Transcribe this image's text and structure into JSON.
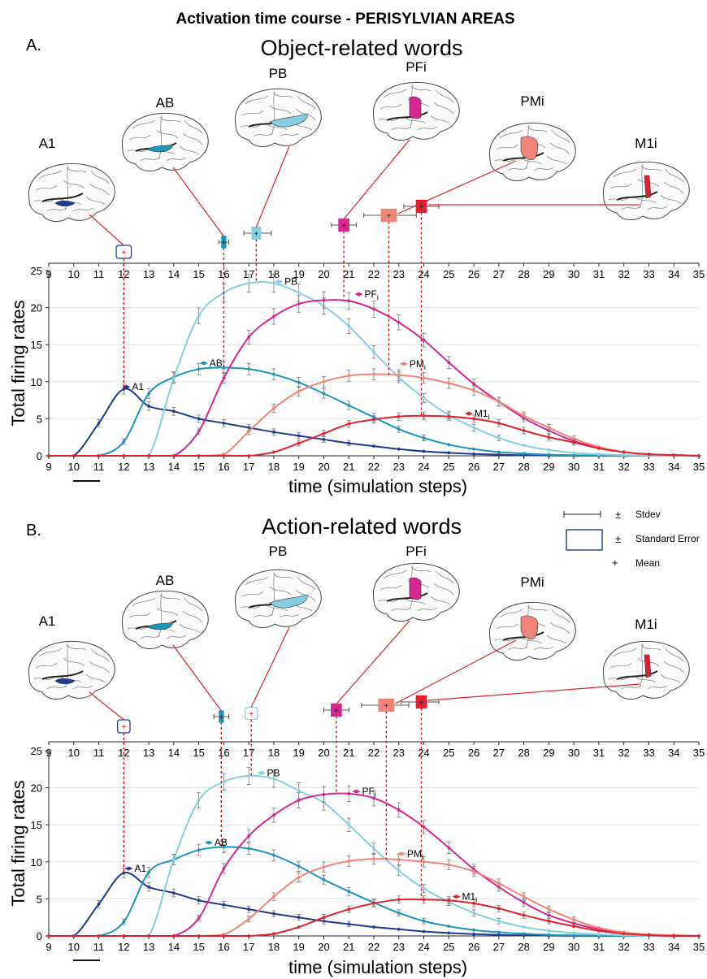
{
  "main_title": "Activation time course - PERISYLVIAN AREAS",
  "xlabel": "time (simulation steps)",
  "ylabel": "Total firing rates",
  "legend": {
    "stdev": "Stdev",
    "se": "Standard Error",
    "mean": "Mean",
    "pm": "±",
    "plus": "+"
  },
  "areas": [
    {
      "key": "A1",
      "label": "A1",
      "line_label": "A1",
      "line_sub": "",
      "color": "#1f3a93"
    },
    {
      "key": "AB",
      "label": "AB",
      "line_label": "AB",
      "line_sub": "",
      "color": "#1b96b8"
    },
    {
      "key": "PB",
      "label": "PB",
      "line_label": "PB",
      "line_sub": "",
      "color": "#86cfe0"
    },
    {
      "key": "PFi",
      "label": "PFi",
      "line_label": "PF",
      "line_sub": "i",
      "color": "#d6268f"
    },
    {
      "key": "PMi",
      "label": "PMi",
      "line_label": "PM",
      "line_sub": "i",
      "color": "#f08478"
    },
    {
      "key": "M1i",
      "label": "M1i",
      "line_label": "M1",
      "line_sub": "i",
      "color": "#e0202e"
    }
  ],
  "chart_data": [
    {
      "panel": "A.",
      "title": "Object-related words",
      "type": "line",
      "xlim": [
        9,
        35
      ],
      "ylim": [
        0,
        25
      ],
      "x_ticks": [
        9,
        10,
        11,
        12,
        13,
        14,
        15,
        16,
        17,
        18,
        19,
        20,
        21,
        22,
        23,
        24,
        25,
        26,
        27,
        28,
        29,
        30,
        31,
        32,
        33,
        34,
        35
      ],
      "y_ticks": [
        0,
        5,
        10,
        15,
        20,
        25
      ],
      "x": [
        9,
        10,
        11,
        12,
        13,
        14,
        15,
        16,
        17,
        18,
        19,
        20,
        21,
        22,
        23,
        24,
        25,
        26,
        27,
        28,
        29,
        30,
        31,
        32,
        33,
        34,
        35
      ],
      "series": [
        {
          "name": "A1",
          "values": [
            0,
            0,
            4.4,
            9.0,
            6.7,
            6.0,
            5.0,
            4.4,
            3.8,
            3.2,
            2.7,
            2.2,
            1.7,
            1.3,
            0.9,
            0.6,
            0.4,
            0.25,
            0.15,
            0.08,
            0.04,
            0.02,
            0,
            0,
            0,
            0,
            0
          ]
        },
        {
          "name": "AB",
          "values": [
            0,
            0,
            0,
            1.9,
            8.4,
            10.6,
            11.7,
            11.9,
            11.7,
            11.0,
            9.9,
            8.4,
            6.8,
            5.2,
            3.6,
            2.4,
            1.5,
            0.9,
            0.5,
            0.3,
            0.15,
            0.08,
            0.03,
            0,
            0,
            0,
            0
          ]
        },
        {
          "name": "PB",
          "values": [
            0,
            0,
            0,
            0,
            0,
            10.5,
            18.9,
            22.0,
            23.3,
            23.3,
            22.0,
            20.2,
            17.5,
            14.0,
            10.6,
            7.8,
            5.5,
            3.8,
            2.4,
            1.4,
            0.8,
            0.4,
            0.2,
            0.1,
            0,
            0,
            0
          ]
        },
        {
          "name": "PFi",
          "values": [
            0,
            0,
            0,
            0,
            0,
            0,
            3.3,
            10.5,
            16.0,
            18.8,
            20.5,
            21.0,
            20.9,
            19.8,
            18.0,
            15.6,
            12.6,
            9.7,
            7.3,
            5.1,
            3.4,
            2.0,
            1.1,
            0.5,
            0.2,
            0.1,
            0
          ]
        },
        {
          "name": "PMi",
          "values": [
            0,
            0,
            0,
            0,
            0,
            0,
            0,
            0.2,
            3.3,
            6.4,
            8.7,
            10.0,
            10.8,
            11.0,
            10.9,
            10.5,
            9.8,
            8.8,
            7.3,
            5.4,
            3.8,
            2.3,
            1.2,
            0.5,
            0.2,
            0.1,
            0
          ]
        },
        {
          "name": "M1i",
          "values": [
            0,
            0,
            0,
            0,
            0,
            0,
            0,
            0,
            0,
            0.5,
            1.7,
            3.0,
            4.3,
            4.9,
            5.3,
            5.4,
            5.3,
            5.0,
            4.4,
            3.4,
            2.5,
            1.8,
            1.0,
            0.5,
            0.2,
            0.1,
            0
          ]
        }
      ],
      "line_label_points": [
        {
          "area": "A1",
          "x": 12.1,
          "y": 9.3
        },
        {
          "area": "AB",
          "x": 15.2,
          "y": 12.5
        },
        {
          "area": "PB",
          "x": 18.2,
          "y": 23.5
        },
        {
          "area": "PFi",
          "x": 21.4,
          "y": 21.8
        },
        {
          "area": "PMi",
          "x": 23.2,
          "y": 12.4
        },
        {
          "area": "M1i",
          "x": 25.8,
          "y": 5.7
        }
      ],
      "peak_markers": [
        {
          "area": "A1",
          "mean": 12.0,
          "box": [
            11.7,
            12.3
          ],
          "whisker": [
            12.0,
            12.0
          ],
          "box_fill": false
        },
        {
          "area": "AB",
          "mean": 16.0,
          "box": [
            15.93,
            16.07
          ],
          "whisker": [
            15.8,
            16.2
          ],
          "box_fill": true
        },
        {
          "area": "PB",
          "mean": 17.3,
          "box": [
            17.13,
            17.47
          ],
          "whisker": [
            16.8,
            17.9
          ],
          "box_fill": true
        },
        {
          "area": "PFi",
          "mean": 20.8,
          "box": [
            20.6,
            21.0
          ],
          "whisker": [
            20.3,
            21.3
          ],
          "box_fill": true
        },
        {
          "area": "PMi",
          "mean": 22.6,
          "box": [
            22.3,
            22.9
          ],
          "whisker": [
            21.6,
            23.7
          ],
          "box_fill": true
        },
        {
          "area": "M1i",
          "mean": 23.9,
          "box": [
            23.7,
            24.1
          ],
          "whisker": [
            23.2,
            24.6
          ],
          "box_fill": true
        }
      ]
    },
    {
      "panel": "B.",
      "title": "Action-related words",
      "type": "line",
      "xlim": [
        9,
        35
      ],
      "ylim": [
        0,
        25
      ],
      "x_ticks": [
        9,
        10,
        11,
        12,
        13,
        14,
        15,
        16,
        17,
        18,
        19,
        20,
        21,
        22,
        23,
        24,
        25,
        26,
        27,
        28,
        29,
        30,
        31,
        32,
        33,
        34,
        35
      ],
      "y_ticks": [
        0,
        5,
        10,
        15,
        20,
        25
      ],
      "x": [
        9,
        10,
        11,
        12,
        13,
        14,
        15,
        16,
        17,
        18,
        19,
        20,
        21,
        22,
        23,
        24,
        25,
        26,
        27,
        28,
        29,
        30,
        31,
        32,
        33,
        34,
        35
      ],
      "series": [
        {
          "name": "A1",
          "values": [
            0,
            0,
            4.3,
            8.5,
            6.6,
            5.8,
            4.8,
            4.2,
            3.6,
            3.0,
            2.5,
            2.0,
            1.6,
            1.2,
            0.9,
            0.6,
            0.4,
            0.25,
            0.15,
            0.08,
            0.04,
            0.02,
            0,
            0,
            0,
            0,
            0
          ]
        },
        {
          "name": "AB",
          "values": [
            0,
            0,
            0,
            1.9,
            8.6,
            10.3,
            11.6,
            12.0,
            11.8,
            10.9,
            9.4,
            7.6,
            6.0,
            4.5,
            3.1,
            2.0,
            1.3,
            0.8,
            0.5,
            0.3,
            0.15,
            0.08,
            0.03,
            0,
            0,
            0,
            0
          ]
        },
        {
          "name": "PB",
          "values": [
            0,
            0,
            0,
            0,
            0,
            10.3,
            18.3,
            20.8,
            21.6,
            21.2,
            19.6,
            18.0,
            15.0,
            11.8,
            8.8,
            6.4,
            4.6,
            3.1,
            2.0,
            1.2,
            0.7,
            0.4,
            0.2,
            0.1,
            0,
            0,
            0
          ]
        },
        {
          "name": "PFi",
          "values": [
            0,
            0,
            0,
            0,
            0,
            0,
            2.4,
            9.1,
            13.5,
            16.3,
            18.3,
            19.1,
            19.2,
            18.6,
            17.0,
            14.7,
            11.9,
            9.0,
            6.6,
            4.5,
            2.8,
            1.7,
            0.9,
            0.4,
            0.2,
            0.1,
            0
          ]
        },
        {
          "name": "PMi",
          "values": [
            0,
            0,
            0,
            0,
            0,
            0,
            0,
            0.2,
            2.3,
            5.3,
            7.9,
            9.3,
            10.1,
            10.4,
            10.3,
            10.0,
            9.6,
            8.7,
            7.1,
            5.3,
            3.6,
            2.2,
            1.1,
            0.5,
            0.2,
            0.1,
            0
          ]
        },
        {
          "name": "M1i",
          "values": [
            0,
            0,
            0,
            0,
            0,
            0,
            0,
            0,
            0,
            0.3,
            1.2,
            2.5,
            3.6,
            4.4,
            4.9,
            4.9,
            4.8,
            4.4,
            3.7,
            2.8,
            2.0,
            1.3,
            0.7,
            0.3,
            0.1,
            0,
            0
          ]
        }
      ],
      "line_label_points": [
        {
          "area": "A1",
          "x": 12.2,
          "y": 9.1
        },
        {
          "area": "AB",
          "x": 15.4,
          "y": 12.6
        },
        {
          "area": "PB",
          "x": 17.5,
          "y": 22.0
        },
        {
          "area": "PFi",
          "x": 21.3,
          "y": 19.5
        },
        {
          "area": "PMi",
          "x": 23.1,
          "y": 11.1
        },
        {
          "area": "M1i",
          "x": 25.3,
          "y": 5.3
        }
      ],
      "peak_markers": [
        {
          "area": "A1",
          "mean": 12.0,
          "box": [
            11.75,
            12.25
          ],
          "whisker": [
            12.0,
            12.0
          ],
          "box_fill": false
        },
        {
          "area": "AB",
          "mean": 15.9,
          "box": [
            15.83,
            15.97
          ],
          "whisker": [
            15.6,
            16.2
          ],
          "box_fill": true
        },
        {
          "area": "PB",
          "mean": 17.1,
          "box": [
            16.85,
            17.35
          ],
          "whisker": [
            17.0,
            17.0
          ],
          "box_fill": false
        },
        {
          "area": "PFi",
          "mean": 20.5,
          "box": [
            20.3,
            20.7
          ],
          "whisker": [
            20.0,
            21.0
          ],
          "box_fill": true
        },
        {
          "area": "PMi",
          "mean": 22.5,
          "box": [
            22.2,
            22.8
          ],
          "whisker": [
            21.5,
            23.4
          ],
          "box_fill": true
        },
        {
          "area": "M1i",
          "mean": 23.9,
          "box": [
            23.7,
            24.1
          ],
          "whisker": [
            23.1,
            24.6
          ],
          "box_fill": true
        }
      ]
    }
  ]
}
